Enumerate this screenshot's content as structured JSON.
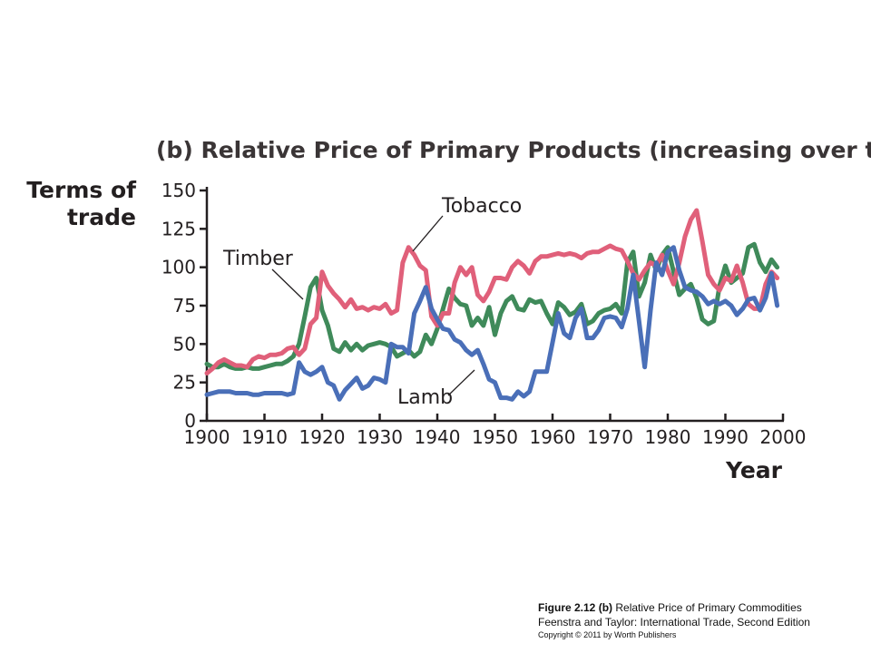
{
  "chart_data": {
    "type": "line",
    "title": "(b) Relative Price of Primary Products (increasing over time)",
    "ylabel_line1": "Terms of",
    "ylabel_line2": "trade",
    "xlabel": "Year",
    "xlim": [
      1900,
      2000
    ],
    "ylim": [
      0,
      150
    ],
    "xticks": [
      "1900",
      "1910",
      "1920",
      "1930",
      "1940",
      "1950",
      "1960",
      "1970",
      "1980",
      "1990",
      "2000"
    ],
    "yticks": [
      "0",
      "25",
      "50",
      "75",
      "100",
      "125",
      "150"
    ],
    "series": [
      {
        "name": "Timber",
        "color": "#3f8a5a",
        "points": [
          [
            1900,
            37
          ],
          [
            1901,
            35
          ],
          [
            1902,
            35
          ],
          [
            1903,
            37
          ],
          [
            1904,
            35
          ],
          [
            1905,
            34
          ],
          [
            1906,
            34
          ],
          [
            1907,
            35
          ],
          [
            1908,
            34
          ],
          [
            1909,
            34
          ],
          [
            1910,
            35
          ],
          [
            1911,
            36
          ],
          [
            1912,
            37
          ],
          [
            1913,
            37
          ],
          [
            1914,
            39
          ],
          [
            1915,
            42
          ],
          [
            1916,
            50
          ],
          [
            1917,
            68
          ],
          [
            1918,
            87
          ],
          [
            1919,
            93
          ],
          [
            1920,
            72
          ],
          [
            1921,
            62
          ],
          [
            1922,
            47
          ],
          [
            1923,
            45
          ],
          [
            1924,
            51
          ],
          [
            1925,
            46
          ],
          [
            1926,
            50
          ],
          [
            1927,
            46
          ],
          [
            1928,
            49
          ],
          [
            1929,
            50
          ],
          [
            1930,
            51
          ],
          [
            1931,
            50
          ],
          [
            1932,
            48
          ],
          [
            1933,
            42
          ],
          [
            1934,
            44
          ],
          [
            1935,
            46
          ],
          [
            1936,
            42
          ],
          [
            1937,
            45
          ],
          [
            1938,
            56
          ],
          [
            1939,
            50
          ],
          [
            1940,
            60
          ],
          [
            1941,
            73
          ],
          [
            1942,
            86
          ],
          [
            1943,
            80
          ],
          [
            1944,
            76
          ],
          [
            1945,
            75
          ],
          [
            1946,
            62
          ],
          [
            1947,
            67
          ],
          [
            1948,
            62
          ],
          [
            1949,
            74
          ],
          [
            1950,
            56
          ],
          [
            1951,
            70
          ],
          [
            1952,
            78
          ],
          [
            1953,
            81
          ],
          [
            1954,
            73
          ],
          [
            1955,
            72
          ],
          [
            1956,
            79
          ],
          [
            1957,
            77
          ],
          [
            1958,
            78
          ],
          [
            1959,
            70
          ],
          [
            1960,
            63
          ],
          [
            1961,
            77
          ],
          [
            1962,
            74
          ],
          [
            1963,
            69
          ],
          [
            1964,
            71
          ],
          [
            1965,
            76
          ],
          [
            1966,
            63
          ],
          [
            1967,
            65
          ],
          [
            1968,
            70
          ],
          [
            1969,
            72
          ],
          [
            1970,
            73
          ],
          [
            1971,
            76
          ],
          [
            1972,
            70
          ],
          [
            1973,
            103
          ],
          [
            1974,
            110
          ],
          [
            1975,
            81
          ],
          [
            1976,
            90
          ],
          [
            1977,
            108
          ],
          [
            1978,
            98
          ],
          [
            1979,
            108
          ],
          [
            1980,
            113
          ],
          [
            1981,
            97
          ],
          [
            1982,
            82
          ],
          [
            1983,
            86
          ],
          [
            1984,
            89
          ],
          [
            1985,
            80
          ],
          [
            1986,
            66
          ],
          [
            1987,
            63
          ],
          [
            1988,
            65
          ],
          [
            1989,
            88
          ],
          [
            1990,
            101
          ],
          [
            1991,
            90
          ],
          [
            1992,
            93
          ],
          [
            1993,
            96
          ],
          [
            1994,
            113
          ],
          [
            1995,
            115
          ],
          [
            1996,
            103
          ],
          [
            1997,
            97
          ],
          [
            1998,
            105
          ],
          [
            1999,
            100
          ]
        ]
      },
      {
        "name": "Tobacco",
        "color": "#e0607a",
        "points": [
          [
            1900,
            31
          ],
          [
            1901,
            34
          ],
          [
            1902,
            38
          ],
          [
            1903,
            40
          ],
          [
            1904,
            38
          ],
          [
            1905,
            36
          ],
          [
            1906,
            36
          ],
          [
            1907,
            35
          ],
          [
            1908,
            40
          ],
          [
            1909,
            42
          ],
          [
            1910,
            41
          ],
          [
            1911,
            43
          ],
          [
            1912,
            43
          ],
          [
            1913,
            44
          ],
          [
            1914,
            47
          ],
          [
            1915,
            48
          ],
          [
            1916,
            43
          ],
          [
            1917,
            47
          ],
          [
            1918,
            63
          ],
          [
            1919,
            67
          ],
          [
            1920,
            97
          ],
          [
            1921,
            88
          ],
          [
            1922,
            83
          ],
          [
            1923,
            79
          ],
          [
            1924,
            74
          ],
          [
            1925,
            79
          ],
          [
            1926,
            73
          ],
          [
            1927,
            74
          ],
          [
            1928,
            72
          ],
          [
            1929,
            74
          ],
          [
            1930,
            73
          ],
          [
            1931,
            76
          ],
          [
            1932,
            70
          ],
          [
            1933,
            72
          ],
          [
            1934,
            103
          ],
          [
            1935,
            113
          ],
          [
            1936,
            108
          ],
          [
            1937,
            101
          ],
          [
            1938,
            98
          ],
          [
            1939,
            68
          ],
          [
            1940,
            62
          ],
          [
            1941,
            70
          ],
          [
            1942,
            70
          ],
          [
            1943,
            90
          ],
          [
            1944,
            100
          ],
          [
            1945,
            95
          ],
          [
            1946,
            100
          ],
          [
            1947,
            82
          ],
          [
            1948,
            78
          ],
          [
            1949,
            84
          ],
          [
            1950,
            93
          ],
          [
            1951,
            93
          ],
          [
            1952,
            92
          ],
          [
            1953,
            100
          ],
          [
            1954,
            104
          ],
          [
            1955,
            101
          ],
          [
            1956,
            96
          ],
          [
            1957,
            104
          ],
          [
            1958,
            107
          ],
          [
            1959,
            107
          ],
          [
            1960,
            108
          ],
          [
            1961,
            109
          ],
          [
            1962,
            108
          ],
          [
            1963,
            109
          ],
          [
            1964,
            108
          ],
          [
            1965,
            106
          ],
          [
            1966,
            109
          ],
          [
            1967,
            110
          ],
          [
            1968,
            110
          ],
          [
            1969,
            112
          ],
          [
            1970,
            114
          ],
          [
            1971,
            112
          ],
          [
            1972,
            111
          ],
          [
            1973,
            104
          ],
          [
            1974,
            96
          ],
          [
            1975,
            92
          ],
          [
            1976,
            98
          ],
          [
            1977,
            103
          ],
          [
            1978,
            101
          ],
          [
            1979,
            108
          ],
          [
            1980,
            98
          ],
          [
            1981,
            89
          ],
          [
            1982,
            103
          ],
          [
            1983,
            120
          ],
          [
            1984,
            131
          ],
          [
            1985,
            137
          ],
          [
            1986,
            117
          ],
          [
            1987,
            95
          ],
          [
            1988,
            89
          ],
          [
            1989,
            85
          ],
          [
            1990,
            93
          ],
          [
            1991,
            91
          ],
          [
            1992,
            101
          ],
          [
            1993,
            90
          ],
          [
            1994,
            76
          ],
          [
            1995,
            73
          ],
          [
            1996,
            73
          ],
          [
            1997,
            89
          ],
          [
            1998,
            97
          ],
          [
            1999,
            93
          ]
        ]
      },
      {
        "name": "Lamb",
        "color": "#4a6fb8",
        "points": [
          [
            1900,
            17
          ],
          [
            1901,
            18
          ],
          [
            1902,
            19
          ],
          [
            1903,
            19
          ],
          [
            1904,
            19
          ],
          [
            1905,
            18
          ],
          [
            1906,
            18
          ],
          [
            1907,
            18
          ],
          [
            1908,
            17
          ],
          [
            1909,
            17
          ],
          [
            1910,
            18
          ],
          [
            1911,
            18
          ],
          [
            1912,
            18
          ],
          [
            1913,
            18
          ],
          [
            1914,
            17
          ],
          [
            1915,
            18
          ],
          [
            1916,
            38
          ],
          [
            1917,
            32
          ],
          [
            1918,
            30
          ],
          [
            1919,
            32
          ],
          [
            1920,
            35
          ],
          [
            1921,
            25
          ],
          [
            1922,
            23
          ],
          [
            1923,
            14
          ],
          [
            1924,
            20
          ],
          [
            1925,
            24
          ],
          [
            1926,
            28
          ],
          [
            1927,
            21
          ],
          [
            1928,
            23
          ],
          [
            1929,
            28
          ],
          [
            1930,
            27
          ],
          [
            1931,
            25
          ],
          [
            1932,
            50
          ],
          [
            1933,
            48
          ],
          [
            1934,
            48
          ],
          [
            1935,
            44
          ],
          [
            1936,
            70
          ],
          [
            1937,
            78
          ],
          [
            1938,
            87
          ],
          [
            1939,
            73
          ],
          [
            1940,
            66
          ],
          [
            1941,
            60
          ],
          [
            1942,
            59
          ],
          [
            1943,
            53
          ],
          [
            1944,
            51
          ],
          [
            1945,
            46
          ],
          [
            1946,
            43
          ],
          [
            1947,
            46
          ],
          [
            1948,
            37
          ],
          [
            1949,
            27
          ],
          [
            1950,
            25
          ],
          [
            1951,
            15
          ],
          [
            1952,
            15
          ],
          [
            1953,
            14
          ],
          [
            1954,
            19
          ],
          [
            1955,
            16
          ],
          [
            1956,
            19
          ],
          [
            1957,
            32
          ],
          [
            1958,
            32
          ],
          [
            1959,
            32
          ],
          [
            1960,
            51
          ],
          [
            1961,
            70
          ],
          [
            1962,
            57
          ],
          [
            1963,
            54
          ],
          [
            1964,
            67
          ],
          [
            1965,
            73
          ],
          [
            1966,
            54
          ],
          [
            1967,
            54
          ],
          [
            1968,
            59
          ],
          [
            1969,
            67
          ],
          [
            1970,
            68
          ],
          [
            1971,
            67
          ],
          [
            1972,
            61
          ],
          [
            1973,
            73
          ],
          [
            1974,
            95
          ],
          [
            1975,
            65
          ],
          [
            1976,
            35
          ],
          [
            1977,
            72
          ],
          [
            1978,
            103
          ],
          [
            1979,
            95
          ],
          [
            1980,
            110
          ],
          [
            1981,
            113
          ],
          [
            1982,
            98
          ],
          [
            1983,
            87
          ],
          [
            1984,
            85
          ],
          [
            1985,
            84
          ],
          [
            1986,
            81
          ],
          [
            1987,
            76
          ],
          [
            1988,
            78
          ],
          [
            1989,
            76
          ],
          [
            1990,
            78
          ],
          [
            1991,
            75
          ],
          [
            1992,
            69
          ],
          [
            1993,
            73
          ],
          [
            1994,
            79
          ],
          [
            1995,
            80
          ],
          [
            1996,
            72
          ],
          [
            1997,
            80
          ],
          [
            1998,
            96
          ],
          [
            1999,
            75
          ]
        ]
      }
    ]
  },
  "caption": {
    "line1_bold": "Figure 2.12 (b)",
    "line1_rest": " Relative Price of Primary Commodities",
    "line2": "Feenstra and Taylor: International Trade, Second Edition",
    "line3": "Copyright © 2011 by Worth Publishers"
  }
}
